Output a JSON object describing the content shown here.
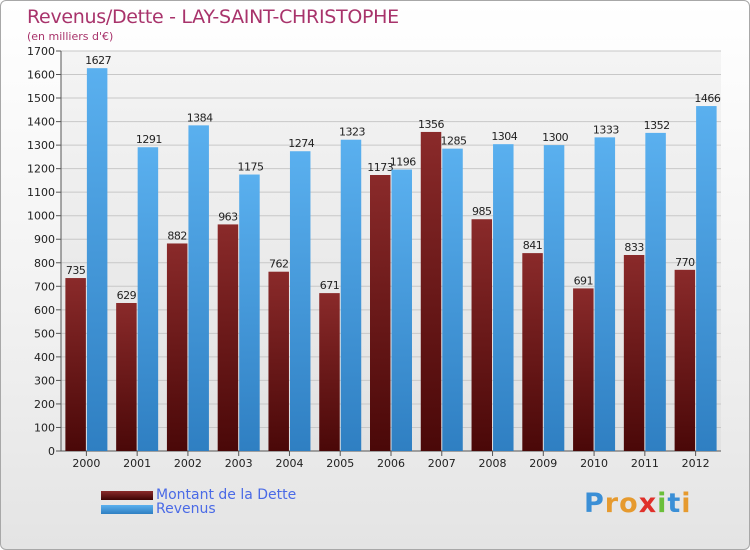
{
  "chart_data": {
    "type": "bar",
    "title": "Revenus/Dette - LAY-SAINT-CHRISTOPHE",
    "subtitle": "(en milliers d'€)",
    "categories": [
      "2000",
      "2001",
      "2002",
      "2003",
      "2004",
      "2005",
      "2006",
      "2007",
      "2008",
      "2009",
      "2010",
      "2011",
      "2012"
    ],
    "series": [
      {
        "name": "Montant de la Dette",
        "color": "#7a1a1a",
        "values": [
          735,
          629,
          882,
          963,
          762,
          671,
          1173,
          1356,
          985,
          841,
          691,
          833,
          770
        ]
      },
      {
        "name": "Revenus",
        "color": "#4aa3e6",
        "values": [
          1627,
          1291,
          1384,
          1175,
          1274,
          1323,
          1196,
          1285,
          1304,
          1300,
          1333,
          1352,
          1466
        ]
      }
    ],
    "ylim": [
      0,
      1700
    ],
    "yticks": [
      0,
      100,
      200,
      300,
      400,
      500,
      600,
      700,
      800,
      900,
      1000,
      1100,
      1200,
      1300,
      1400,
      1500,
      1600,
      1700
    ],
    "grid": true,
    "legend_position": "bottom-left"
  },
  "logo": {
    "text": "Proxiti",
    "letters": [
      {
        "ch": "P",
        "color": "#3b8fd6"
      },
      {
        "ch": "r",
        "color": "#e69a2e"
      },
      {
        "ch": "o",
        "color": "#e69a2e"
      },
      {
        "ch": "x",
        "color": "#e0302a"
      },
      {
        "ch": "i",
        "color": "#6bbf3a"
      },
      {
        "ch": "t",
        "color": "#3b8fd6"
      },
      {
        "ch": "i",
        "color": "#e69a2e"
      }
    ]
  }
}
